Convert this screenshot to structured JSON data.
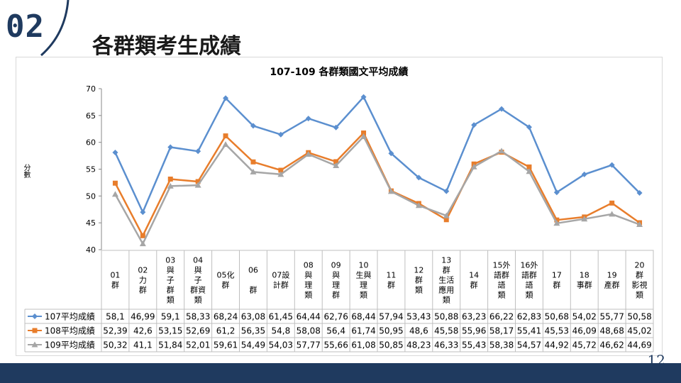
{
  "slide": {
    "section_number": "02",
    "title": "各群類考生成績",
    "page_number": "12"
  },
  "colors": {
    "navy": "#1f3a5f",
    "s107": "#5b8fcf",
    "s108": "#e87d2b",
    "s109": "#a6a6a6"
  },
  "chart_data": {
    "type": "line",
    "title": "107-109 各群類國文平均成績",
    "xlabel": "",
    "ylabel": "分數",
    "ylim": [
      40,
      70
    ],
    "yticks": [
      "70",
      "65",
      "60",
      "55",
      "50",
      "45",
      "40"
    ],
    "categories": [
      [
        "01",
        "群"
      ],
      [
        "02",
        "力",
        "群"
      ],
      [
        "03",
        "與",
        "子",
        "群",
        "類"
      ],
      [
        "04",
        "與",
        "子",
        "群資",
        "類"
      ],
      [
        "05化",
        "群"
      ],
      [
        "06",
        "",
        "群"
      ],
      [
        "07設",
        "計群"
      ],
      [
        "08",
        "與",
        "理",
        "類"
      ],
      [
        "09",
        "與",
        "理",
        "群"
      ],
      [
        "10",
        "生與",
        "理",
        "類"
      ],
      [
        "11",
        "群"
      ],
      [
        "12",
        "群",
        "類"
      ],
      [
        "13",
        "群",
        "生活",
        "應用",
        "類"
      ],
      [
        "14",
        "群"
      ],
      [
        "15外",
        "語群",
        "語",
        "類"
      ],
      [
        "16外",
        "語群",
        "語",
        "類"
      ],
      [
        "17",
        "群"
      ],
      [
        "18",
        "事群"
      ],
      [
        "19",
        "產群"
      ],
      [
        "20",
        "群",
        "影視",
        "類"
      ]
    ],
    "series": [
      {
        "name": "107平均成績",
        "marker": "diamond",
        "labels": [
          "58,1",
          "46,99",
          "59,1",
          "58,33",
          "68,24",
          "63,08",
          "61,45",
          "64,44",
          "62,76",
          "68,44",
          "57,94",
          "53,43",
          "50,88",
          "63,23",
          "66,22",
          "62,83",
          "50,68",
          "54,02",
          "55,77",
          "50,58"
        ],
        "values": [
          58.1,
          46.99,
          59.1,
          58.33,
          68.24,
          63.08,
          61.45,
          64.44,
          62.76,
          68.44,
          57.94,
          53.43,
          50.88,
          63.23,
          66.22,
          62.83,
          50.68,
          54.02,
          55.77,
          50.58
        ]
      },
      {
        "name": "108平均成績",
        "marker": "square",
        "labels": [
          "52,39",
          "42,6",
          "53,15",
          "52,69",
          "61,2",
          "56,35",
          "54,8",
          "58,08",
          "56,4",
          "61,74",
          "50,95",
          "48,6",
          "45,58",
          "55,96",
          "58,17",
          "55,41",
          "45,53",
          "46,09",
          "48,68",
          "45,02"
        ],
        "values": [
          52.39,
          42.6,
          53.15,
          52.69,
          61.2,
          56.35,
          54.8,
          58.08,
          56.4,
          61.74,
          50.95,
          48.6,
          45.58,
          55.96,
          58.17,
          55.41,
          45.53,
          46.09,
          48.68,
          45.02
        ]
      },
      {
        "name": "109平均成績",
        "marker": "triangle",
        "labels": [
          "50,32",
          "41,1",
          "51,84",
          "52,01",
          "59,61",
          "54,49",
          "54,03",
          "57,77",
          "55,66",
          "61,08",
          "50,85",
          "48,23",
          "46,33",
          "55,43",
          "58,38",
          "54,57",
          "44,92",
          "45,72",
          "46,62",
          "44,69"
        ],
        "values": [
          50.32,
          41.1,
          51.84,
          52.01,
          59.61,
          54.49,
          54.03,
          57.77,
          55.66,
          61.08,
          50.85,
          48.23,
          46.33,
          55.43,
          58.38,
          54.57,
          44.92,
          45.72,
          46.62,
          44.69
        ]
      }
    ]
  }
}
